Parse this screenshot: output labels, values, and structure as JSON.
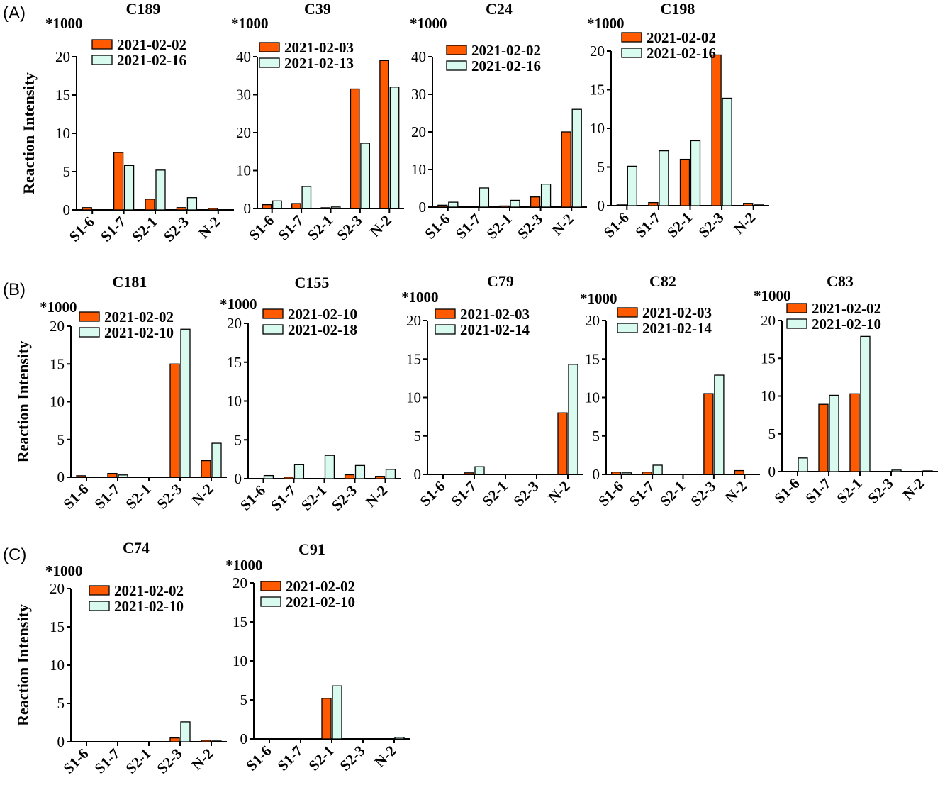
{
  "colors": {
    "series_a": "#FF5A00",
    "series_b": "#D9FBEF",
    "stroke": "#000000"
  },
  "panels": [
    {
      "label": "(A)"
    },
    {
      "label": "(B)"
    },
    {
      "label": "(C)"
    }
  ],
  "chart_data": [
    {
      "type": "bar",
      "panel": "(A)",
      "title": "C189",
      "multiplier": "*1000",
      "ylabel": "Reaction Intensity",
      "ylim": [
        0,
        20
      ],
      "yticks": [
        "0",
        "5",
        "10",
        "15",
        "20"
      ],
      "categories": [
        "S1-6",
        "S1-7",
        "S2-1",
        "S2-3",
        "N-2"
      ],
      "series": [
        {
          "name": "2021-02-02",
          "values": [
            0.3,
            7.5,
            1.4,
            0.3,
            0.2
          ]
        },
        {
          "name": "2021-02-16",
          "values": [
            0,
            5.8,
            5.2,
            1.6,
            0
          ]
        }
      ]
    },
    {
      "type": "bar",
      "panel": "(A)",
      "title": "C39",
      "multiplier": "*1000",
      "ylabel": "",
      "ylim": [
        0,
        40
      ],
      "yticks": [
        "0",
        "10",
        "20",
        "30",
        "40"
      ],
      "categories": [
        "S1-6",
        "S1-7",
        "S2-1",
        "S2-3",
        "N-2"
      ],
      "series": [
        {
          "name": "2021-02-03",
          "values": [
            1,
            1.3,
            0.2,
            31.5,
            39
          ]
        },
        {
          "name": "2021-02-13",
          "values": [
            2,
            5.8,
            0.4,
            17.2,
            32
          ]
        }
      ]
    },
    {
      "type": "bar",
      "panel": "(A)",
      "title": "C24",
      "multiplier": "*1000",
      "ylabel": "",
      "ylim": [
        0,
        40
      ],
      "yticks": [
        "0",
        "10",
        "20",
        "30",
        "40"
      ],
      "categories": [
        "S1-6",
        "S1-7",
        "S2-1",
        "S2-3",
        "N-2"
      ],
      "series": [
        {
          "name": "2021-02-02",
          "values": [
            0.5,
            0,
            0.3,
            2.7,
            20
          ]
        },
        {
          "name": "2021-02-16",
          "values": [
            1.3,
            5.1,
            1.8,
            6.1,
            26
          ]
        }
      ]
    },
    {
      "type": "bar",
      "panel": "(A)",
      "title": "C198",
      "multiplier": "*1000",
      "ylabel": "",
      "ylim": [
        0,
        20
      ],
      "yticks": [
        "0",
        "5",
        "10",
        "15",
        "20"
      ],
      "categories": [
        "S1-6",
        "S1-7",
        "S2-1",
        "S2-3",
        "N-2"
      ],
      "series": [
        {
          "name": "2021-02-02",
          "values": [
            0.1,
            0.4,
            6,
            19.5,
            0.3
          ]
        },
        {
          "name": "2021-02-16",
          "values": [
            5.1,
            7.1,
            8.4,
            13.9,
            0.1
          ]
        }
      ]
    },
    {
      "type": "bar",
      "panel": "(B)",
      "title": "C181",
      "multiplier": "*1000",
      "ylabel": "Reaction Intensity",
      "ylim": [
        0,
        20
      ],
      "yticks": [
        "0",
        "5",
        "10",
        "15",
        "20"
      ],
      "categories": [
        "S1-6",
        "S1-7",
        "S2-1",
        "S2-3",
        "N-2"
      ],
      "series": [
        {
          "name": "2021-02-02",
          "values": [
            0.2,
            0.5,
            0,
            15,
            2.2
          ]
        },
        {
          "name": "2021-02-10",
          "values": [
            0,
            0.3,
            0,
            19.6,
            4.5
          ]
        }
      ]
    },
    {
      "type": "bar",
      "panel": "(B)",
      "title": "C155",
      "multiplier": "*1000",
      "ylabel": "",
      "ylim": [
        0,
        20
      ],
      "yticks": [
        "0",
        "5",
        "10",
        "15",
        "20"
      ],
      "categories": [
        "S1-6",
        "S1-7",
        "S2-1",
        "S2-3",
        "N-2"
      ],
      "series": [
        {
          "name": "2021-02-10",
          "values": [
            0,
            0.2,
            0,
            0.5,
            0.3
          ]
        },
        {
          "name": "2021-02-18",
          "values": [
            0.4,
            1.8,
            3,
            1.7,
            1.2
          ]
        }
      ]
    },
    {
      "type": "bar",
      "panel": "(B)",
      "title": "C79",
      "multiplier": "*1000",
      "ylabel": "",
      "ylim": [
        0,
        20
      ],
      "yticks": [
        "0",
        "5",
        "10",
        "15",
        "20"
      ],
      "categories": [
        "S1-6",
        "S1-7",
        "S2-1",
        "S2-3",
        "N-2"
      ],
      "series": [
        {
          "name": "2021-02-03",
          "values": [
            0,
            0.2,
            0,
            0,
            8
          ]
        },
        {
          "name": "2021-02-14",
          "values": [
            0,
            1,
            0,
            0,
            14.3
          ]
        }
      ]
    },
    {
      "type": "bar",
      "panel": "(B)",
      "title": "C82",
      "multiplier": "*1000",
      "ylabel": "",
      "ylim": [
        0,
        20
      ],
      "yticks": [
        "0",
        "5",
        "10",
        "15",
        "20"
      ],
      "categories": [
        "S1-6",
        "S1-7",
        "S2-1",
        "S2-3",
        "N-2"
      ],
      "series": [
        {
          "name": "2021-02-03",
          "values": [
            0.3,
            0.3,
            0,
            10.5,
            0.5
          ]
        },
        {
          "name": "2021-02-14",
          "values": [
            0.2,
            1.2,
            0,
            12.9,
            0
          ]
        }
      ]
    },
    {
      "type": "bar",
      "panel": "(B)",
      "title": "C83",
      "multiplier": "*1000",
      "ylabel": "",
      "ylim": [
        0,
        20
      ],
      "yticks": [
        "0",
        "5",
        "10",
        "15",
        "20"
      ],
      "categories": [
        "S1-6",
        "S1-7",
        "S2-1",
        "S2-3",
        "N-2"
      ],
      "series": [
        {
          "name": "2021-02-02",
          "values": [
            0,
            8.9,
            10.3,
            0,
            0
          ]
        },
        {
          "name": "2021-02-10",
          "values": [
            1.8,
            10.1,
            17.9,
            0.2,
            0.1
          ]
        }
      ]
    },
    {
      "type": "bar",
      "panel": "(C)",
      "title": "C74",
      "multiplier": "*1000",
      "ylabel": "Reaction Intensity",
      "ylim": [
        0,
        20
      ],
      "yticks": [
        "0",
        "5",
        "10",
        "15",
        "20"
      ],
      "categories": [
        "S1-6",
        "S1-7",
        "S2-1",
        "S2-3",
        "N-2"
      ],
      "series": [
        {
          "name": "2021-02-02",
          "values": [
            0,
            0,
            0,
            0.5,
            0.2
          ]
        },
        {
          "name": "2021-02-10",
          "values": [
            0,
            0,
            0,
            2.6,
            0.1
          ]
        }
      ]
    },
    {
      "type": "bar",
      "panel": "(C)",
      "title": "C91",
      "multiplier": "*1000",
      "ylabel": "",
      "ylim": [
        0,
        20
      ],
      "yticks": [
        "0",
        "5",
        "10",
        "15",
        "20"
      ],
      "categories": [
        "S1-6",
        "S1-7",
        "S2-1",
        "S2-3",
        "N-2"
      ],
      "series": [
        {
          "name": "2021-02-02",
          "values": [
            0,
            0,
            5.2,
            0,
            0
          ]
        },
        {
          "name": "2021-02-10",
          "values": [
            0,
            0,
            6.8,
            0,
            0.2
          ]
        }
      ]
    }
  ]
}
